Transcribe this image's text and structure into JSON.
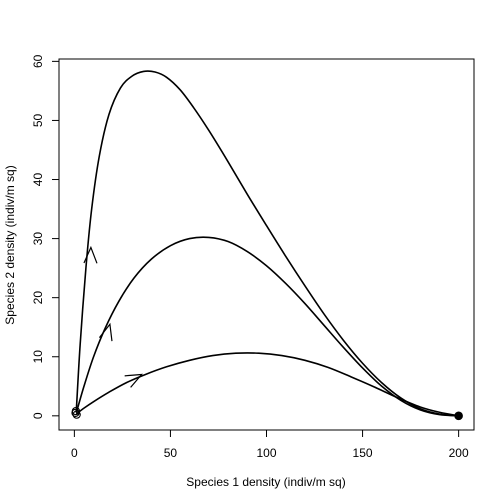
{
  "chart_data": {
    "type": "line",
    "title": "",
    "xlabel": "Species 1 density (indiv/m sq)",
    "ylabel": "Species 2 density (indiv/m sq)",
    "xlim": [
      -8,
      208
    ],
    "ylim": [
      -2.4,
      60.4
    ],
    "xticks": [
      0,
      50,
      100,
      150,
      200
    ],
    "yticks": [
      0,
      10,
      20,
      30,
      40,
      50,
      60
    ],
    "grid": false,
    "legend": "none",
    "series": [
      {
        "x": [
          1,
          3,
          6,
          9,
          13,
          18,
          24,
          30,
          36,
          42,
          48,
          55,
          62,
          70,
          80,
          90,
          100,
          110,
          120,
          130,
          140,
          150,
          160,
          170,
          180,
          190,
          200
        ],
        "y": [
          0.8,
          12,
          25,
          35,
          44,
          51,
          55.5,
          57.5,
          58.3,
          58.2,
          57.3,
          55.2,
          52.2,
          48.3,
          43,
          37.5,
          32.2,
          27,
          22,
          17.2,
          12.8,
          8.9,
          5.6,
          3,
          1.2,
          0.3,
          0
        ]
      },
      {
        "x": [
          1,
          5,
          10,
          16,
          23,
          31,
          40,
          50,
          60,
          70,
          80,
          90,
          100,
          110,
          120,
          130,
          140,
          150,
          160,
          170,
          180,
          190,
          200
        ],
        "y": [
          0.5,
          5,
          10,
          14.8,
          19.3,
          23.3,
          26.5,
          28.8,
          30,
          30.2,
          29.5,
          27.8,
          25.4,
          22.4,
          19,
          15.3,
          11.6,
          8.1,
          5,
          2.6,
          1,
          0.2,
          0
        ]
      },
      {
        "x": [
          1,
          5,
          10,
          18,
          27,
          37,
          48,
          60,
          72,
          84,
          96,
          108,
          120,
          132,
          144,
          156,
          168,
          180,
          190,
          200
        ],
        "y": [
          0.3,
          1.3,
          2.4,
          4,
          5.6,
          7,
          8.3,
          9.4,
          10.2,
          10.6,
          10.6,
          10.2,
          9.4,
          8.2,
          6.6,
          4.9,
          3.1,
          1.5,
          0.6,
          0
        ]
      }
    ],
    "direction_arrows": [
      {
        "series": 0,
        "x": 8.6,
        "y": 28.5,
        "dx": 1,
        "dy": 12
      },
      {
        "series": 1,
        "x": 18.5,
        "y": 15.5,
        "dx": 3,
        "dy": 3.5
      },
      {
        "series": 2,
        "x": 35,
        "y": 7,
        "dx": 6,
        "dy": 1
      }
    ],
    "start_points": [
      {
        "x": 0.8,
        "y": 0.8
      },
      {
        "x": 0.6,
        "y": 0.5
      },
      {
        "x": 1.2,
        "y": 0.2
      }
    ],
    "equilibrium_point": {
      "x": 200,
      "y": 0
    }
  }
}
